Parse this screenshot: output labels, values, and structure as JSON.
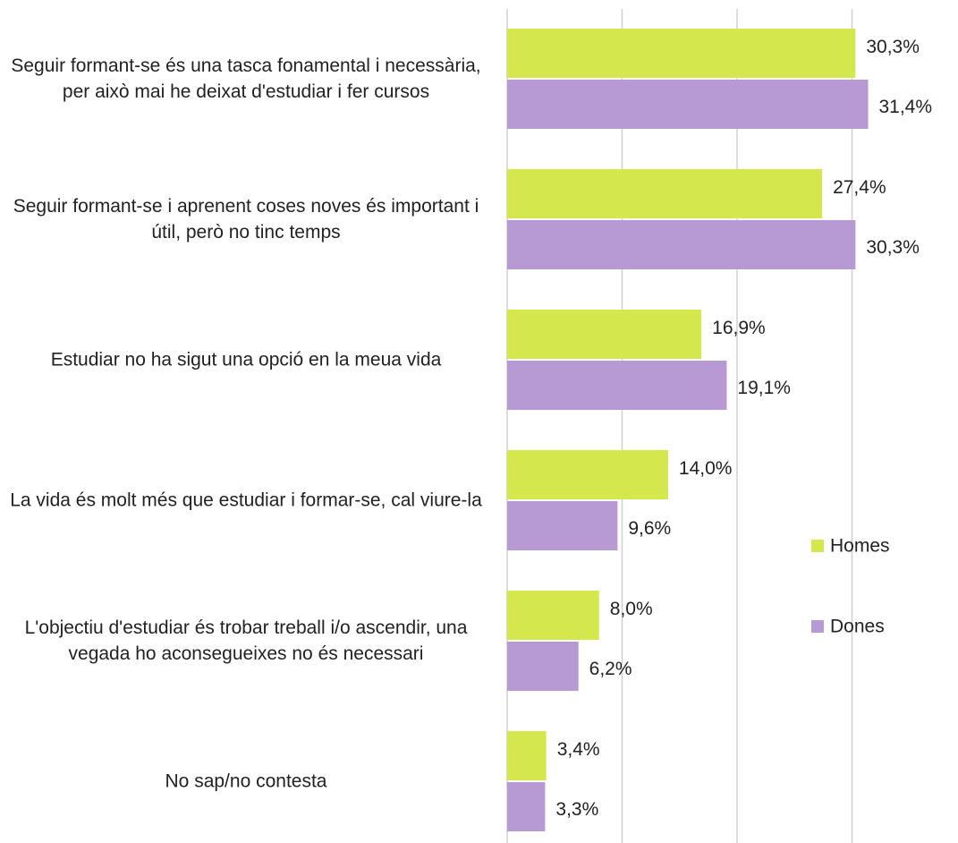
{
  "chart_data": {
    "type": "hbar",
    "categories": [
      "Seguir formant-se és una tasca fonamental i necessària, per això mai he deixat d'estudiar i fer cursos",
      "Seguir formant-se i aprenent coses noves és important i útil, però no tinc temps",
      "Estudiar no ha sigut una opció en la meua vida",
      "La vida és molt més que estudiar i formar-se, cal viure-la",
      "L'objectiu d'estudiar és trobar treball i/o ascendir, una vegada ho aconsegueixes no és necessari",
      "No sap/no contesta"
    ],
    "series": [
      {
        "name": "Homes",
        "color": "#d4e84e",
        "values": [
          30.3,
          27.4,
          16.9,
          14.0,
          8.0,
          3.4
        ],
        "value_labels": [
          "30,3%",
          "27,4%",
          "16,9%",
          "14,0%",
          "8,0%",
          "3,4%"
        ]
      },
      {
        "name": "Dones",
        "color": "#b79ad3",
        "values": [
          31.4,
          30.3,
          19.1,
          9.6,
          6.2,
          3.3
        ],
        "value_labels": [
          "31,4%",
          "30,3%",
          "19,1%",
          "9,6%",
          "6,2%",
          "3,3%"
        ]
      }
    ],
    "xlim": [
      0,
      35
    ],
    "xticks": [
      0,
      10,
      20,
      30
    ],
    "grid": true,
    "legend": "right"
  }
}
